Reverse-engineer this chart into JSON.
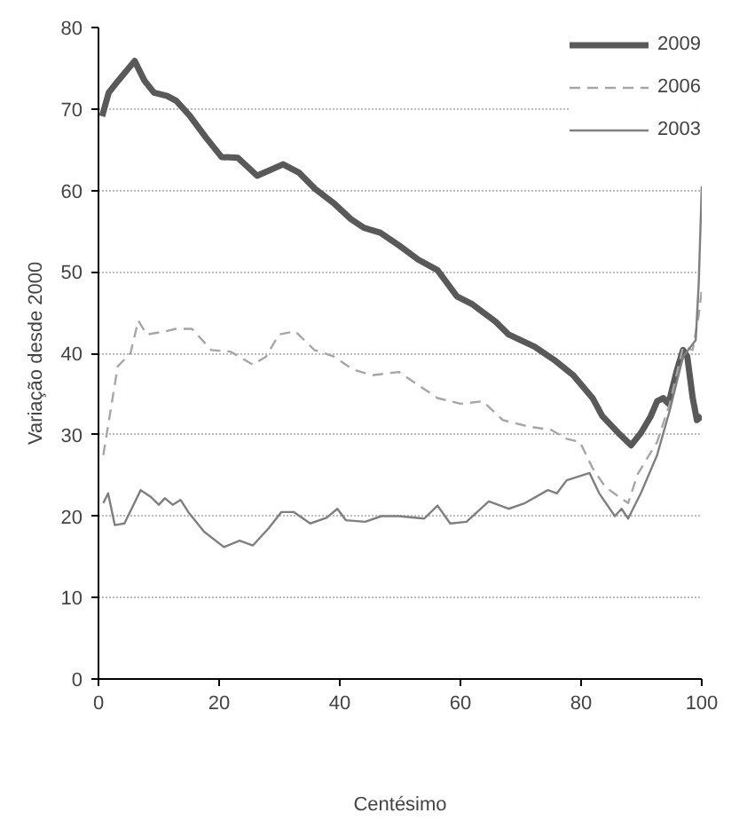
{
  "chart_data": {
    "type": "line",
    "xlabel": "Centésimo",
    "ylabel": "Variação desde 2000",
    "xlim": [
      0,
      100
    ],
    "ylim": [
      0,
      80
    ],
    "xticks": [
      0,
      20,
      40,
      60,
      80,
      100
    ],
    "yticks": [
      0,
      10,
      20,
      30,
      40,
      50,
      60,
      70,
      80
    ],
    "grid": "y",
    "legend": "top right",
    "series": [
      {
        "name": "2009",
        "color": "#595959",
        "line_style": "solid",
        "x": [
          0.6,
          1.7,
          3.3,
          6,
          7.6,
          9.2,
          11.4,
          12.9,
          15.1,
          17.8,
          20.4,
          23.1,
          26.3,
          30.6,
          33.2,
          35.9,
          39.2,
          41.8,
          44,
          46.7,
          49.9,
          53,
          56.2,
          59.4,
          62,
          65.8,
          68,
          72.3,
          75.5,
          78.7,
          81.9,
          83.5,
          86.2,
          88.3,
          89.9,
          91.5,
          92.6,
          93.6,
          94.5,
          95.8,
          96.9,
          97.6,
          98.5,
          99.2,
          100
        ],
        "values": [
          69.1,
          72,
          73.5,
          75.9,
          73.5,
          72,
          71.6,
          71,
          69.2,
          66.5,
          64.1,
          64,
          61.8,
          63.2,
          62.2,
          60.2,
          58.3,
          56.5,
          55.4,
          54.8,
          53.2,
          51.5,
          50.2,
          47,
          46,
          43.9,
          42.3,
          40.8,
          39.2,
          37.3,
          34.5,
          32.3,
          30.2,
          28.7,
          30.2,
          32.2,
          34.1,
          34.5,
          33.8,
          37.7,
          40.4,
          39.6,
          34.5,
          31.8,
          32.3
        ]
      },
      {
        "name": "2006",
        "color": "#a6a6a6",
        "line_style": "dashed",
        "x": [
          0.8,
          3.2,
          5.3,
          6.6,
          8,
          11.2,
          12.8,
          15.5,
          18.7,
          21.9,
          25.6,
          27.8,
          29.9,
          32.6,
          35.8,
          39,
          42.2,
          45.4,
          49.8,
          53,
          56.2,
          60,
          63.7,
          67,
          71.3,
          75,
          77.6,
          79.8,
          81.9,
          84,
          86.2,
          87.8,
          89.4,
          92.6,
          94.7,
          96.9,
          98.5,
          99.5,
          100
        ],
        "values": [
          27.5,
          38.4,
          40,
          44,
          42.3,
          42.7,
          43,
          43,
          40.4,
          40.2,
          38.6,
          39.6,
          42.3,
          42.7,
          40.4,
          39.6,
          38,
          37.3,
          37.7,
          36.1,
          34.5,
          33.8,
          34.1,
          31.8,
          31,
          30.6,
          29.5,
          29.1,
          25.9,
          23.6,
          22.4,
          21.6,
          25.2,
          29.1,
          33.8,
          40.8,
          40.4,
          44.7,
          47.8
        ]
      },
      {
        "name": "2003",
        "color": "#7f7f7f",
        "line_style": "solid",
        "x": [
          0.8,
          1.6,
          2.7,
          4.3,
          7,
          8.6,
          10,
          11,
          12.3,
          13.6,
          14.9,
          17.5,
          20.8,
          23.4,
          25.6,
          28.2,
          30.3,
          32.4,
          35.1,
          37.8,
          39.6,
          41,
          44.2,
          46.9,
          49.8,
          54,
          56.2,
          58.3,
          61,
          64.7,
          68,
          70.7,
          74.5,
          76,
          77.6,
          81.4,
          83,
          85.6,
          86.7,
          87.8,
          89.9,
          92.6,
          94.7,
          96.9,
          99,
          99.5,
          100
        ],
        "values": [
          21.6,
          22.8,
          18.9,
          19.1,
          23.2,
          22.4,
          21.4,
          22.2,
          21.4,
          22,
          20.5,
          18.1,
          16.2,
          17,
          16.4,
          18.5,
          20.5,
          20.5,
          19.1,
          19.8,
          20.9,
          19.5,
          19.3,
          20,
          20,
          19.7,
          21.3,
          19.1,
          19.3,
          21.8,
          20.9,
          21.6,
          23.2,
          22.8,
          24.4,
          25.3,
          22.8,
          20,
          20.9,
          19.7,
          22.8,
          27.5,
          33,
          39.6,
          41.6,
          48.6,
          60.5
        ]
      }
    ]
  }
}
